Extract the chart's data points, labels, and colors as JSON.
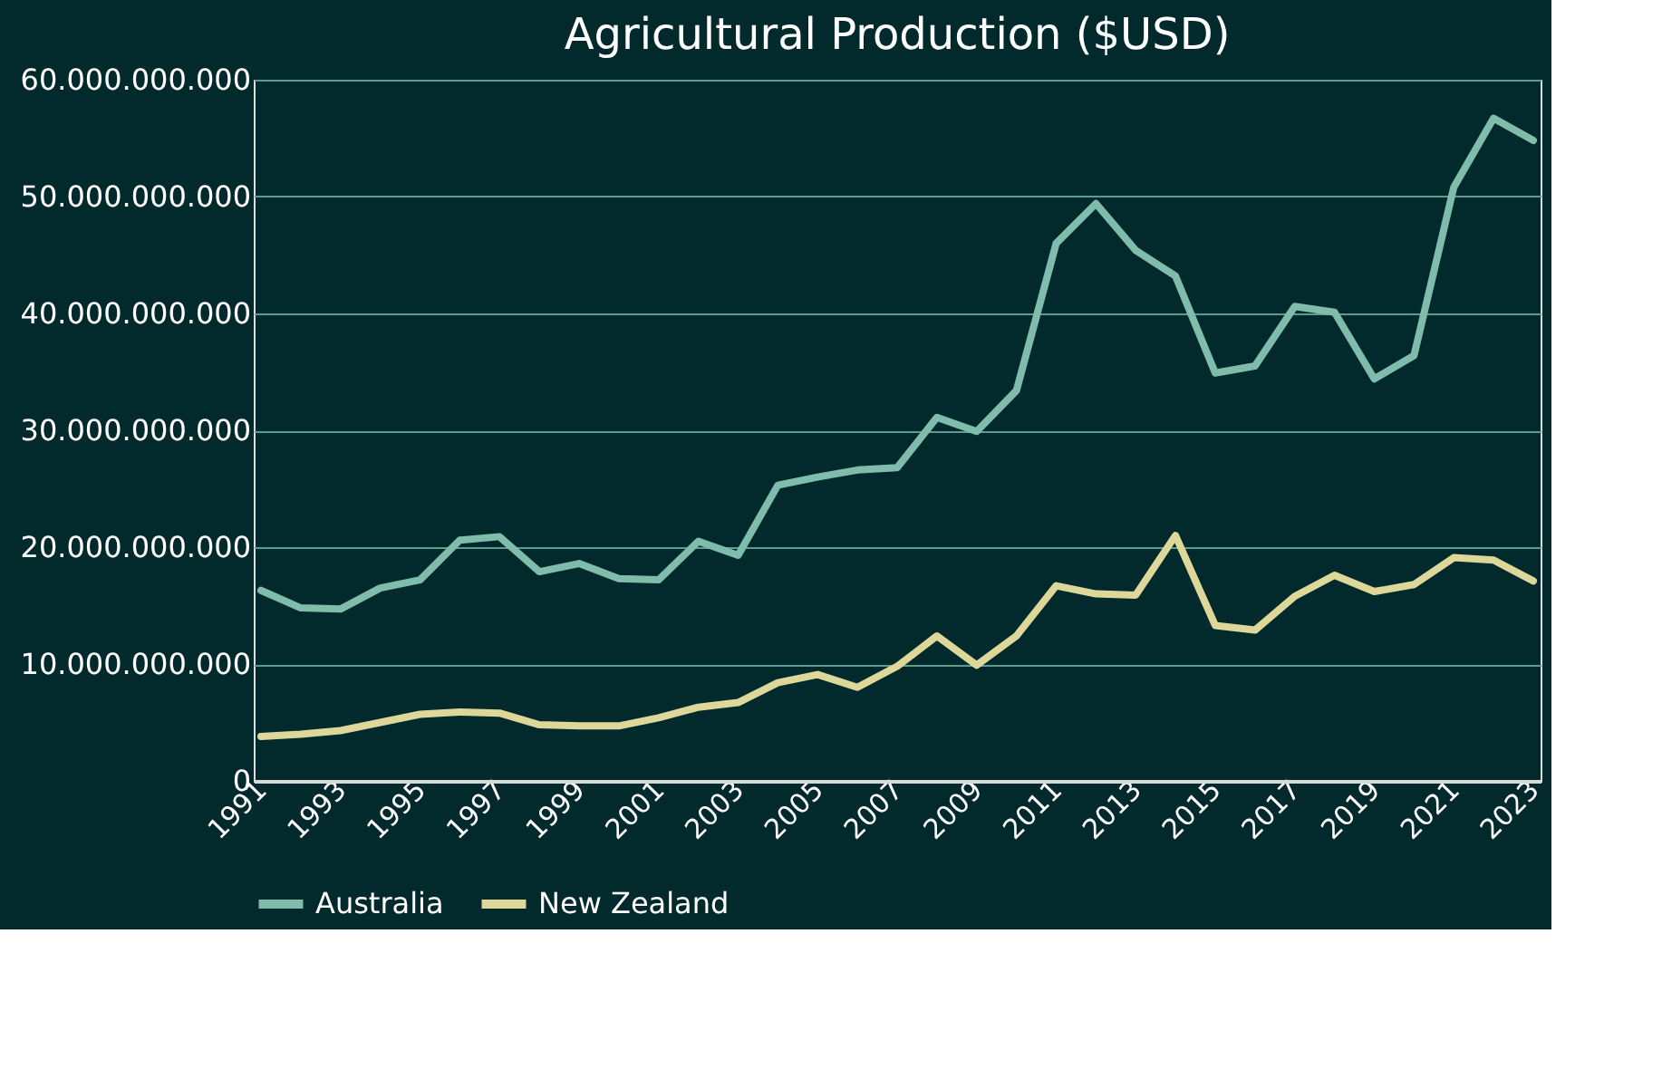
{
  "chart_data": {
    "type": "line",
    "title": "Agricultural Production ($USD)",
    "categories": [
      "1991",
      null,
      "1993",
      null,
      "1995",
      null,
      "1997",
      null,
      "1999",
      null,
      "2001",
      null,
      "2003",
      null,
      "2005",
      null,
      "2007",
      null,
      "2009",
      null,
      "2011",
      null,
      "2013",
      null,
      "2015",
      null,
      "2017",
      null,
      "2019",
      null,
      "2021",
      null,
      "2023"
    ],
    "series": [
      {
        "name": "Australia",
        "color": "#7fbcab",
        "values": [
          16300000000,
          14800000000,
          14700000000,
          16500000000,
          17200000000,
          20600000000,
          20900000000,
          17900000000,
          18600000000,
          17300000000,
          17200000000,
          20500000000,
          19300000000,
          25300000000,
          26000000000,
          26600000000,
          26800000000,
          31100000000,
          29900000000,
          33400000000,
          46000000000,
          49400000000,
          45400000000,
          43200000000,
          34900000000,
          35500000000,
          40600000000,
          40100000000,
          34400000000,
          36400000000,
          50800000000,
          56700000000,
          54800000000
        ]
      },
      {
        "name": "New Zealand",
        "color": "#ddd899",
        "values": [
          3800000000,
          4000000000,
          4300000000,
          5000000000,
          5700000000,
          5900000000,
          5800000000,
          4800000000,
          4700000000,
          4700000000,
          5400000000,
          6300000000,
          6700000000,
          8400000000,
          9100000000,
          8000000000,
          9800000000,
          12400000000,
          9900000000,
          12400000000,
          16700000000,
          16000000000,
          15900000000,
          21000000000,
          13300000000,
          12900000000,
          15800000000,
          17600000000,
          16200000000,
          16800000000,
          19100000000,
          18900000000,
          17100000000
        ]
      }
    ],
    "ylim": [
      0,
      60000000000
    ],
    "yticks": [
      {
        "value": 0,
        "label": "0"
      },
      {
        "value": 10000000000,
        "label": "10.000.000.000"
      },
      {
        "value": 20000000000,
        "label": "20.000.000.000"
      },
      {
        "value": 30000000000,
        "label": "30.000.000.000"
      },
      {
        "value": 40000000000,
        "label": "40.000.000.000"
      },
      {
        "value": 50000000000,
        "label": "50.000.000.000"
      },
      {
        "value": 60000000000,
        "label": "60.000.000.000"
      }
    ],
    "grid": "y",
    "legend": "bottom",
    "marker": "none",
    "line_style": "solid"
  }
}
